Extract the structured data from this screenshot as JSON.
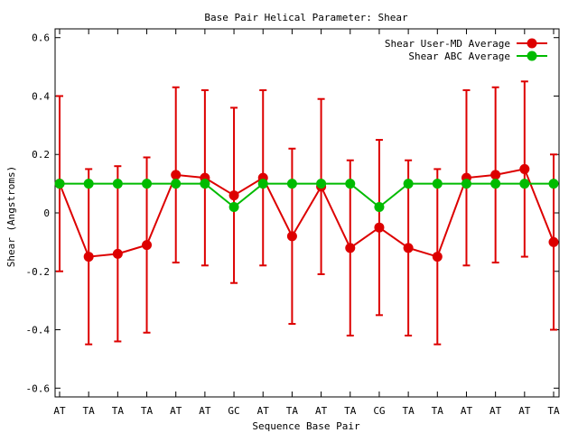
{
  "chart_data": {
    "type": "line",
    "title": "Base Pair Helical Parameter: Shear",
    "xlabel": "Sequence Base Pair",
    "ylabel": "Shear (Angstroms)",
    "categories": [
      "AT",
      "TA",
      "TA",
      "TA",
      "AT",
      "AT",
      "GC",
      "AT",
      "TA",
      "AT",
      "TA",
      "CG",
      "TA",
      "TA",
      "AT",
      "AT",
      "AT",
      "TA"
    ],
    "ylim": [
      -0.63,
      0.63
    ],
    "yticks": [
      -0.6,
      -0.4,
      -0.2,
      0,
      0.2,
      0.4,
      0.6
    ],
    "ytick_labels": [
      "-0.6",
      "-0.4",
      "-0.2",
      "0",
      "0.2",
      "0.4",
      "0.6"
    ],
    "legend_position": "top-right",
    "grid": false,
    "series": [
      {
        "name": "Shear User-MD Average",
        "color": "#dd0000",
        "values": [
          0.1,
          -0.15,
          -0.14,
          -0.11,
          0.13,
          0.12,
          0.06,
          0.12,
          -0.08,
          0.09,
          -0.12,
          -0.05,
          -0.12,
          -0.15,
          0.12,
          0.13,
          0.15,
          -0.1
        ],
        "err_low": [
          -0.2,
          -0.45,
          -0.44,
          -0.41,
          -0.17,
          -0.18,
          -0.24,
          -0.18,
          -0.38,
          -0.21,
          -0.42,
          -0.35,
          -0.42,
          -0.45,
          -0.18,
          -0.17,
          -0.15,
          -0.4
        ],
        "err_high": [
          0.4,
          0.15,
          0.16,
          0.19,
          0.43,
          0.42,
          0.36,
          0.42,
          0.22,
          0.39,
          0.18,
          0.25,
          0.18,
          0.15,
          0.42,
          0.43,
          0.45,
          0.2
        ]
      },
      {
        "name": "Shear ABC Average",
        "color": "#00bb00",
        "values": [
          0.1,
          0.1,
          0.1,
          0.1,
          0.1,
          0.1,
          0.02,
          0.1,
          0.1,
          0.1,
          0.1,
          0.02,
          0.1,
          0.1,
          0.1,
          0.1,
          0.1,
          0.1
        ]
      }
    ]
  }
}
